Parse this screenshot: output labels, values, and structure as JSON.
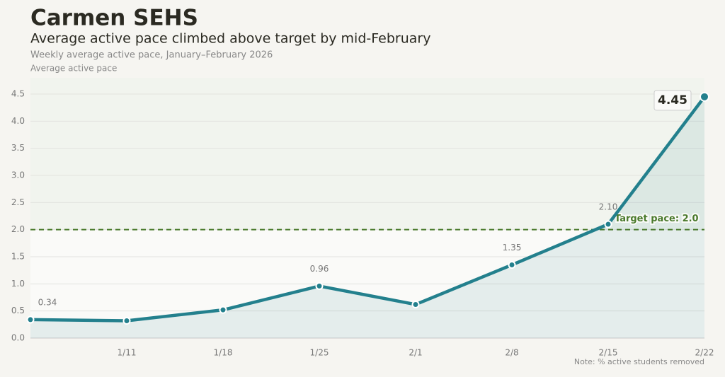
{
  "chart_data": {
    "type": "line",
    "title": "Carmen SEHS",
    "subtitle": "Average active pace climbed above target by mid-February",
    "description": "Weekly average active pace, January–February 2026",
    "y_label": "Average active pace",
    "note": "Note: % active students removed",
    "categories": [
      null,
      "1/11",
      "1/18",
      "1/25",
      "2/1",
      "2/8",
      "2/15",
      "2/22"
    ],
    "values": [
      0.34,
      0.32,
      0.52,
      0.96,
      0.62,
      1.35,
      2.1,
      4.45
    ],
    "value_labels": [
      "0.34",
      null,
      null,
      "0.96",
      null,
      "1.35",
      "2.10",
      "4.45"
    ],
    "color": "#23808d",
    "target": {
      "value": 2.0,
      "label": "Target pace: 2.0",
      "color": "#4a7a2c"
    },
    "ylim": [
      0,
      4.8
    ],
    "yticks": [
      {
        "value": 0,
        "label": "0.0"
      },
      {
        "value": 0.5,
        "label": "0.5"
      },
      {
        "value": 1,
        "label": "1.0"
      },
      {
        "value": 1.5,
        "label": "1.5"
      },
      {
        "value": 2,
        "label": "2.0"
      },
      {
        "value": 2.5,
        "label": "2.5"
      },
      {
        "value": 3,
        "label": "3.0"
      },
      {
        "value": 3.5,
        "label": "3.5"
      },
      {
        "value": 4,
        "label": "4.0"
      },
      {
        "value": 4.5,
        "label": "4.5"
      }
    ],
    "grid": true
  }
}
